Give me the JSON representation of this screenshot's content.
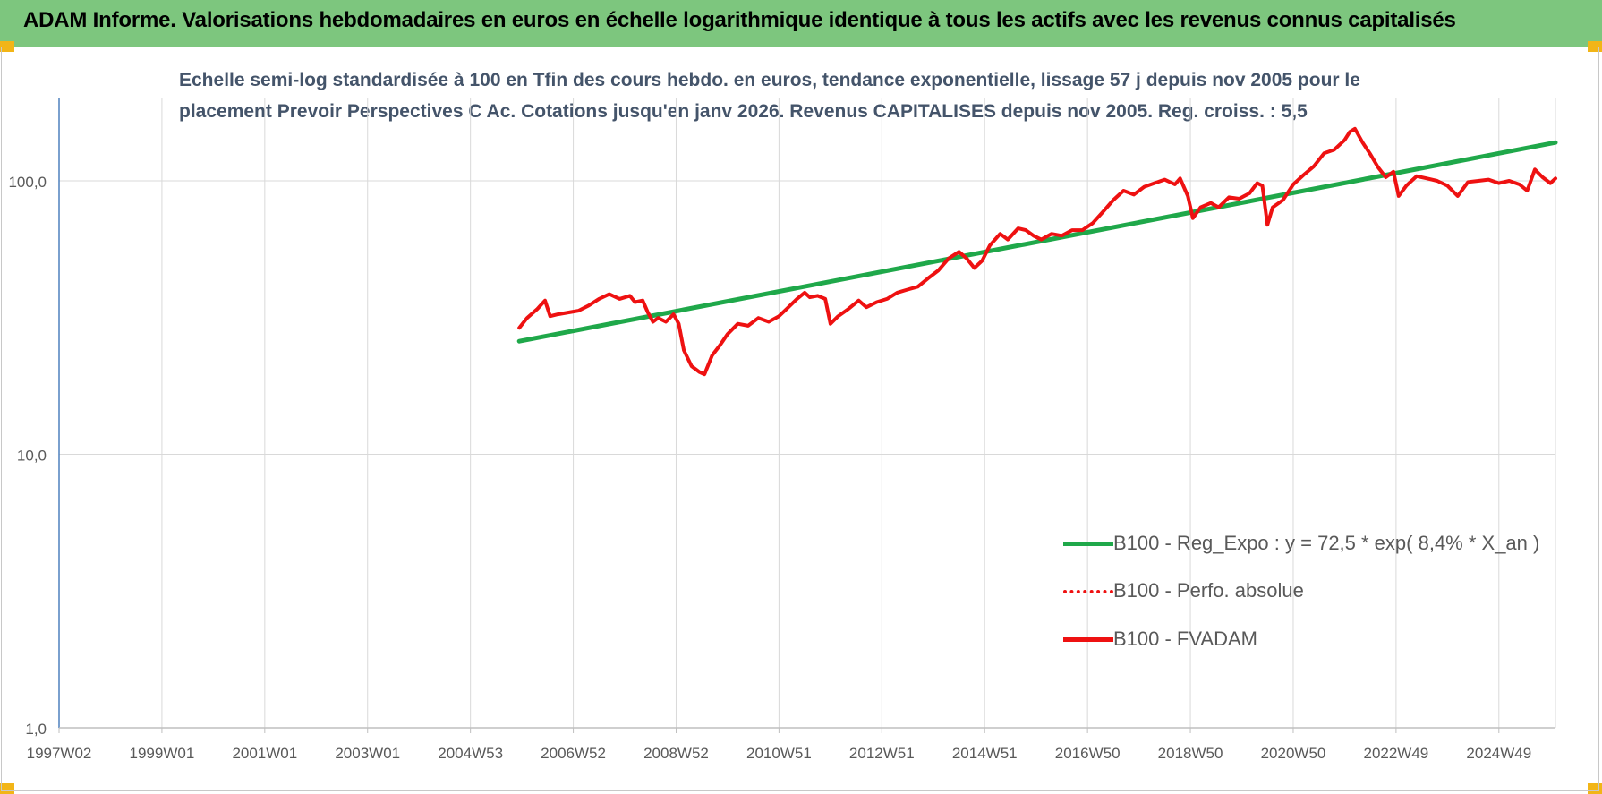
{
  "header": {
    "title": "ADAM Informe. Valorisations hebdomadaires en euros en échelle logarithmique identique à tous les actifs avec les revenus connus capitalisés"
  },
  "colors": {
    "header_bg": "#7dc67e",
    "accent_corner": "#f2b517",
    "trend": "#1fa84a",
    "fvadam": "#ee1111",
    "subtitle": "#44546a",
    "axis_text": "#595959",
    "grid": "#d9d9d9"
  },
  "chart_data": {
    "type": "line",
    "title_line1": "Echelle semi-log standardisée à 100 en Tfin des cours hebdo. en euros, tendance exponentielle, lissage 57 j depuis nov 2005 pour le",
    "title_line2": "placement Prevoir Perspectives C Ac. Cotations jusqu'en janv 2026. Revenus CAPITALISES depuis nov 2005. Reg. croiss. : 5,5",
    "y_scale": "log",
    "ylim": [
      1,
      200
    ],
    "y_ticks": [
      {
        "value": 1,
        "label": "1,0"
      },
      {
        "value": 10,
        "label": "10,0"
      },
      {
        "value": 100,
        "label": "100,0"
      }
    ],
    "x_range": [
      1997.0,
      2026.1
    ],
    "x_ticks": [
      {
        "x": 1997.0,
        "label": "1997W02"
      },
      {
        "x": 1999.0,
        "label": "1999W01"
      },
      {
        "x": 2001.0,
        "label": "2001W01"
      },
      {
        "x": 2003.0,
        "label": "2003W01"
      },
      {
        "x": 2005.0,
        "label": "2004W53"
      },
      {
        "x": 2007.0,
        "label": "2006W52"
      },
      {
        "x": 2009.0,
        "label": "2008W52"
      },
      {
        "x": 2011.0,
        "label": "2010W51"
      },
      {
        "x": 2013.0,
        "label": "2012W51"
      },
      {
        "x": 2015.0,
        "label": "2014W51"
      },
      {
        "x": 2017.0,
        "label": "2016W50"
      },
      {
        "x": 2019.0,
        "label": "2018W50"
      },
      {
        "x": 2021.0,
        "label": "2020W50"
      },
      {
        "x": 2023.0,
        "label": "2022W49"
      },
      {
        "x": 2025.0,
        "label": "2024W49"
      }
    ],
    "grid": "both",
    "legend_position": "bottom-right",
    "series": [
      {
        "name": "B100 - Reg_Expo : y = 72,5 * exp( 8,4% *  X_an )",
        "style": "solid",
        "color": "#1fa84a",
        "points": [
          [
            2005.95,
            25.9
          ],
          [
            2026.1,
            138.0
          ]
        ]
      },
      {
        "name": "B100 - Perfo. absolue",
        "style": "dotted",
        "color": "#ee1111",
        "points": []
      },
      {
        "name": "B100 - FVADAM",
        "style": "solid",
        "color": "#ee1111",
        "points": [
          [
            2005.95,
            29.0
          ],
          [
            2006.1,
            31.5
          ],
          [
            2006.3,
            34.0
          ],
          [
            2006.45,
            36.5
          ],
          [
            2006.55,
            32.0
          ],
          [
            2006.7,
            32.5
          ],
          [
            2006.9,
            33.0
          ],
          [
            2007.1,
            33.5
          ],
          [
            2007.3,
            35.0
          ],
          [
            2007.5,
            37.0
          ],
          [
            2007.7,
            38.5
          ],
          [
            2007.9,
            37.0
          ],
          [
            2008.1,
            38.0
          ],
          [
            2008.2,
            36.0
          ],
          [
            2008.35,
            36.5
          ],
          [
            2008.45,
            33.0
          ],
          [
            2008.55,
            30.5
          ],
          [
            2008.65,
            31.5
          ],
          [
            2008.8,
            30.5
          ],
          [
            2008.95,
            32.5
          ],
          [
            2009.05,
            30.0
          ],
          [
            2009.15,
            24.0
          ],
          [
            2009.3,
            21.0
          ],
          [
            2009.45,
            20.0
          ],
          [
            2009.55,
            19.6
          ],
          [
            2009.7,
            23.0
          ],
          [
            2009.85,
            25.0
          ],
          [
            2010.0,
            27.5
          ],
          [
            2010.2,
            30.0
          ],
          [
            2010.4,
            29.5
          ],
          [
            2010.6,
            31.5
          ],
          [
            2010.8,
            30.5
          ],
          [
            2011.0,
            32.0
          ],
          [
            2011.15,
            34.0
          ],
          [
            2011.35,
            37.0
          ],
          [
            2011.5,
            39.0
          ],
          [
            2011.6,
            37.5
          ],
          [
            2011.75,
            38.0
          ],
          [
            2011.9,
            37.0
          ],
          [
            2012.0,
            30.0
          ],
          [
            2012.15,
            32.0
          ],
          [
            2012.35,
            34.0
          ],
          [
            2012.55,
            36.5
          ],
          [
            2012.7,
            34.5
          ],
          [
            2012.9,
            36.0
          ],
          [
            2013.1,
            37.0
          ],
          [
            2013.3,
            39.0
          ],
          [
            2013.5,
            40.0
          ],
          [
            2013.7,
            41.0
          ],
          [
            2013.9,
            44.0
          ],
          [
            2014.1,
            47.0
          ],
          [
            2014.3,
            52.0
          ],
          [
            2014.5,
            55.0
          ],
          [
            2014.65,
            52.0
          ],
          [
            2014.8,
            48.0
          ],
          [
            2014.95,
            51.0
          ],
          [
            2015.1,
            58.0
          ],
          [
            2015.3,
            64.0
          ],
          [
            2015.45,
            61.0
          ],
          [
            2015.65,
            67.0
          ],
          [
            2015.8,
            66.0
          ],
          [
            2015.95,
            63.0
          ],
          [
            2016.1,
            61.0
          ],
          [
            2016.3,
            64.0
          ],
          [
            2016.5,
            63.0
          ],
          [
            2016.7,
            66.0
          ],
          [
            2016.9,
            66.0
          ],
          [
            2017.1,
            70.0
          ],
          [
            2017.3,
            77.0
          ],
          [
            2017.5,
            85.0
          ],
          [
            2017.7,
            92.0
          ],
          [
            2017.9,
            89.0
          ],
          [
            2018.1,
            95.0
          ],
          [
            2018.3,
            98.0
          ],
          [
            2018.5,
            101.0
          ],
          [
            2018.7,
            97.0
          ],
          [
            2018.8,
            102.0
          ],
          [
            2018.95,
            88.0
          ],
          [
            2019.05,
            73.0
          ],
          [
            2019.2,
            80.0
          ],
          [
            2019.4,
            83.0
          ],
          [
            2019.55,
            80.0
          ],
          [
            2019.75,
            87.0
          ],
          [
            2019.95,
            86.0
          ],
          [
            2020.15,
            90.0
          ],
          [
            2020.3,
            98.0
          ],
          [
            2020.4,
            96.0
          ],
          [
            2020.5,
            69.0
          ],
          [
            2020.6,
            80.0
          ],
          [
            2020.8,
            85.0
          ],
          [
            2021.0,
            97.0
          ],
          [
            2021.2,
            105.0
          ],
          [
            2021.4,
            113.0
          ],
          [
            2021.6,
            126.0
          ],
          [
            2021.8,
            130.0
          ],
          [
            2022.0,
            141.0
          ],
          [
            2022.1,
            151.0
          ],
          [
            2022.2,
            155.0
          ],
          [
            2022.35,
            138.0
          ],
          [
            2022.5,
            125.0
          ],
          [
            2022.65,
            112.0
          ],
          [
            2022.8,
            103.0
          ],
          [
            2022.95,
            108.0
          ],
          [
            2023.05,
            88.0
          ],
          [
            2023.2,
            96.0
          ],
          [
            2023.4,
            104.0
          ],
          [
            2023.6,
            102.0
          ],
          [
            2023.8,
            100.0
          ],
          [
            2024.0,
            96.0
          ],
          [
            2024.2,
            88.0
          ],
          [
            2024.4,
            99.0
          ],
          [
            2024.6,
            100.0
          ],
          [
            2024.8,
            101.0
          ],
          [
            2025.0,
            98.0
          ],
          [
            2025.2,
            100.0
          ],
          [
            2025.4,
            97.0
          ],
          [
            2025.55,
            92.0
          ],
          [
            2025.7,
            110.0
          ],
          [
            2025.85,
            103.0
          ],
          [
            2026.0,
            98.0
          ],
          [
            2026.1,
            102.0
          ]
        ]
      }
    ]
  }
}
